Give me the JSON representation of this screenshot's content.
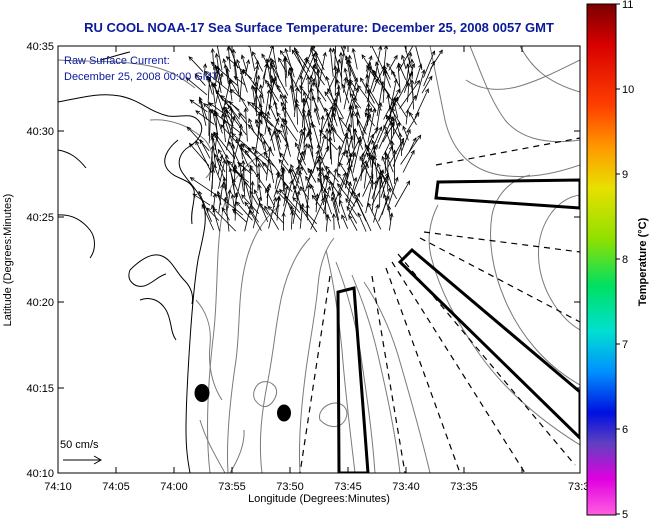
{
  "title": "RU COOL  NOAA-17  Sea Surface Temperature:  December 25, 2008 0057 GMT",
  "annotation": {
    "line1": "Raw Surface Current:",
    "line2": "December 25, 2008 00:00 GMT"
  },
  "scale_label": "50 cm/s",
  "axes": {
    "xlabel": "Longitude (Degrees:Minutes)",
    "ylabel": "Latitude (Degrees:Minutes)",
    "x_ticks": [
      "74:10",
      "74:05",
      "74:00",
      "73:55",
      "73:50",
      "73:45",
      "73:40",
      "73:35",
      "73:3"
    ],
    "y_ticks": [
      "40:35",
      "40:30",
      "40:25",
      "40:20",
      "40:15",
      "40:10"
    ]
  },
  "colorbar": {
    "label": "Temperature (°C)",
    "ticks": [
      "11",
      "10",
      "9",
      "8",
      "7",
      "6",
      "5"
    ],
    "min": 5,
    "max": 11
  },
  "colors": {
    "title": "#0a1a9a",
    "land_line": "#000000",
    "contour": "#7a7a7a",
    "vector": "#000000"
  }
}
